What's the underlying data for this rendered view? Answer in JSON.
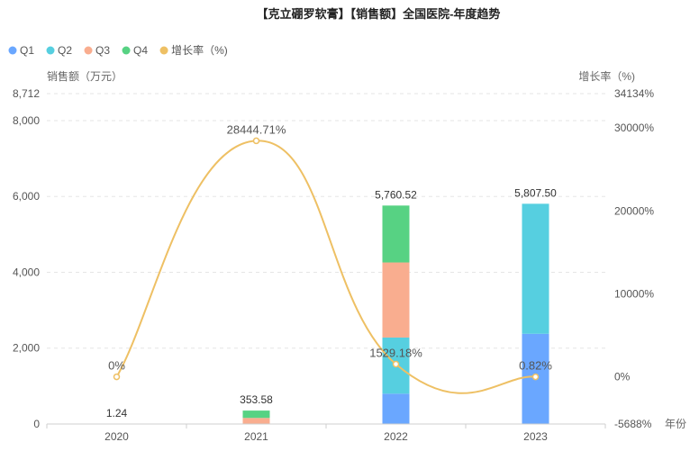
{
  "chart_data": {
    "type": "bar",
    "stacked": true,
    "title": "【克立硼罗软膏】【销售额】全国医院-年度趋势",
    "categories": [
      "2020",
      "2021",
      "2022",
      "2023"
    ],
    "xlabel": "年份",
    "ylabel": "销售额（万元）",
    "y2label": "增长率（%)",
    "ylim": [
      0,
      8712
    ],
    "y_ticks": [
      "8,712",
      "8,000",
      "6,000",
      "4,000",
      "2,000",
      "0"
    ],
    "y_tick_values": [
      8712,
      8000,
      6000,
      4000,
      2000,
      0
    ],
    "y2lim": [
      -5688,
      34134
    ],
    "y2_ticks": [
      "34134%",
      "30000%",
      "20000%",
      "10000%",
      "0%",
      "-5688%"
    ],
    "y2_tick_values": [
      34134,
      30000,
      20000,
      10000,
      0,
      -5688
    ],
    "series": [
      {
        "name": "Q1",
        "color": "#6aa7ff",
        "values": [
          0,
          0,
          800,
          2380
        ]
      },
      {
        "name": "Q2",
        "color": "#56cfe0",
        "values": [
          0,
          0,
          1480,
          3427.5
        ]
      },
      {
        "name": "Q3",
        "color": "#f9ad8f",
        "values": [
          0,
          160,
          1980,
          0
        ]
      },
      {
        "name": "Q4",
        "color": "#57d283",
        "values": [
          1.24,
          193.58,
          1500.52,
          0
        ]
      }
    ],
    "totals": [
      1.24,
      353.58,
      5760.52,
      5807.5
    ],
    "total_labels": [
      "1.24",
      "353.58",
      "5,760.52",
      "5,807.50"
    ],
    "growth": {
      "name": "增长率（%)",
      "color": "#eec064",
      "values": [
        0,
        28444.71,
        1529.18,
        0.82
      ],
      "labels": [
        "0%",
        "28444.71%",
        "1529.18%",
        "0.82%"
      ]
    },
    "legend_position": "top-left"
  }
}
